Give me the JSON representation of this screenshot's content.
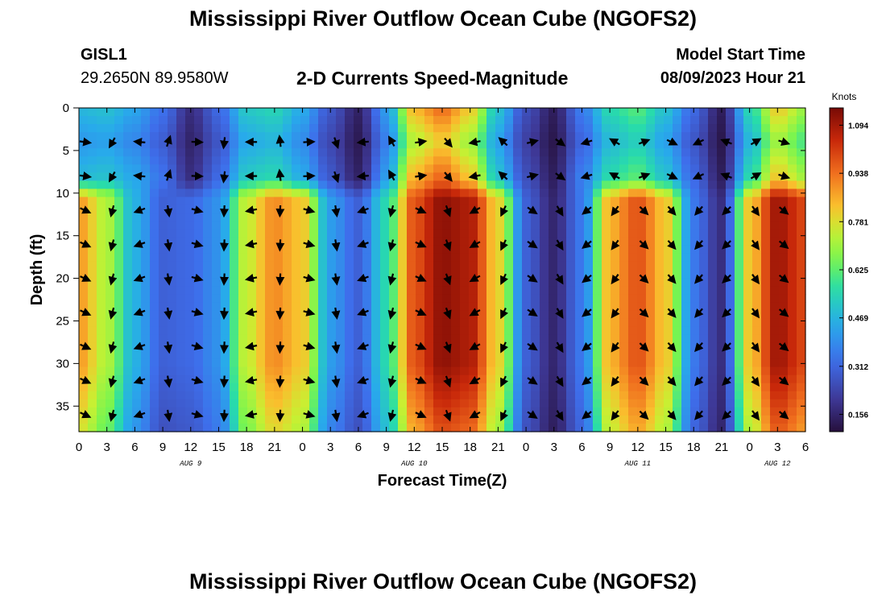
{
  "header": {
    "title": "Mississippi River Outflow Ocean Cube (NGOFS2)",
    "station_id": "GISL1",
    "station_coords": "29.2650N  89.9580W",
    "product": "2-D Currents Speed-Magnitude",
    "model_start_label": "Model Start Time",
    "model_start_value": "08/09/2023 Hour 21"
  },
  "footer": {
    "title": "Mississippi River Outflow Ocean Cube (NGOFS2)"
  },
  "chart_data": {
    "type": "heatmap",
    "title": "2-D Currents Speed-Magnitude",
    "xlabel": "Forecast Time(Z)",
    "ylabel": "Depth (ft)",
    "xlim": [
      0,
      78
    ],
    "ylim": [
      38,
      0
    ],
    "x_ticks": [
      0,
      3,
      6,
      9,
      12,
      15,
      18,
      21,
      24,
      27,
      30,
      33,
      36,
      39,
      42,
      45,
      48,
      51,
      54,
      57,
      60,
      63,
      66,
      69,
      72,
      75,
      78
    ],
    "x_tick_labels": [
      "0",
      "3",
      "6",
      "9",
      "12",
      "15",
      "18",
      "21",
      "0",
      "3",
      "6",
      "9",
      "12",
      "15",
      "18",
      "21",
      "0",
      "3",
      "6",
      "9",
      "12",
      "15",
      "18",
      "21",
      "0",
      "3",
      "6"
    ],
    "y_ticks": [
      0,
      5,
      10,
      15,
      20,
      25,
      30,
      35
    ],
    "y_tick_labels": [
      "0",
      "5",
      "10",
      "15",
      "20",
      "25",
      "30",
      "35"
    ],
    "date_labels": [
      {
        "text": "AUG 9",
        "x": 12
      },
      {
        "text": "AUG 10",
        "x": 36
      },
      {
        "text": "AUG 11",
        "x": 60
      },
      {
        "text": "AUG 12",
        "x": 75
      }
    ],
    "colorbar": {
      "unit_label": "Knots",
      "min": 0.1,
      "max": 1.15,
      "tick_values": [
        0.156,
        0.312,
        0.469,
        0.625,
        0.781,
        0.938,
        1.094
      ],
      "tick_labels": [
        "0.156",
        "0.312",
        "0.469",
        "0.625",
        "0.781",
        "0.938",
        "1.094"
      ]
    },
    "speed_peaks": [
      {
        "time": 0,
        "deep": 0.88,
        "surface": 0.48
      },
      {
        "time": 3,
        "deep": 0.72,
        "surface": 0.5
      },
      {
        "time": 6,
        "deep": 0.46,
        "surface": 0.44
      },
      {
        "time": 9,
        "deep": 0.3,
        "surface": 0.34
      },
      {
        "time": 12,
        "deep": 0.32,
        "surface": 0.18
      },
      {
        "time": 15,
        "deep": 0.4,
        "surface": 0.32
      },
      {
        "time": 18,
        "deep": 0.75,
        "surface": 0.52
      },
      {
        "time": 21,
        "deep": 0.9,
        "surface": 0.55
      },
      {
        "time": 24,
        "deep": 0.82,
        "surface": 0.45
      },
      {
        "time": 27,
        "deep": 0.42,
        "surface": 0.28
      },
      {
        "time": 30,
        "deep": 0.3,
        "surface": 0.15
      },
      {
        "time": 33,
        "deep": 0.55,
        "surface": 0.42
      },
      {
        "time": 36,
        "deep": 0.98,
        "surface": 0.85
      },
      {
        "time": 39,
        "deep": 1.12,
        "surface": 0.95
      },
      {
        "time": 42,
        "deep": 1.08,
        "surface": 0.82
      },
      {
        "time": 45,
        "deep": 0.8,
        "surface": 0.5
      },
      {
        "time": 48,
        "deep": 0.3,
        "surface": 0.26
      },
      {
        "time": 51,
        "deep": 0.16,
        "surface": 0.14
      },
      {
        "time": 54,
        "deep": 0.35,
        "surface": 0.36
      },
      {
        "time": 57,
        "deep": 0.85,
        "surface": 0.56
      },
      {
        "time": 60,
        "deep": 0.98,
        "surface": 0.62
      },
      {
        "time": 63,
        "deep": 0.82,
        "surface": 0.5
      },
      {
        "time": 66,
        "deep": 0.35,
        "surface": 0.32
      },
      {
        "time": 69,
        "deep": 0.18,
        "surface": 0.14
      },
      {
        "time": 72,
        "deep": 0.82,
        "surface": 0.55
      },
      {
        "time": 75,
        "deep": 1.1,
        "surface": 0.82
      },
      {
        "time": 78,
        "deep": 1.0,
        "surface": 0.7
      }
    ],
    "arrow_depths": [
      4,
      8,
      12,
      16,
      20,
      24,
      28,
      32,
      36
    ]
  }
}
